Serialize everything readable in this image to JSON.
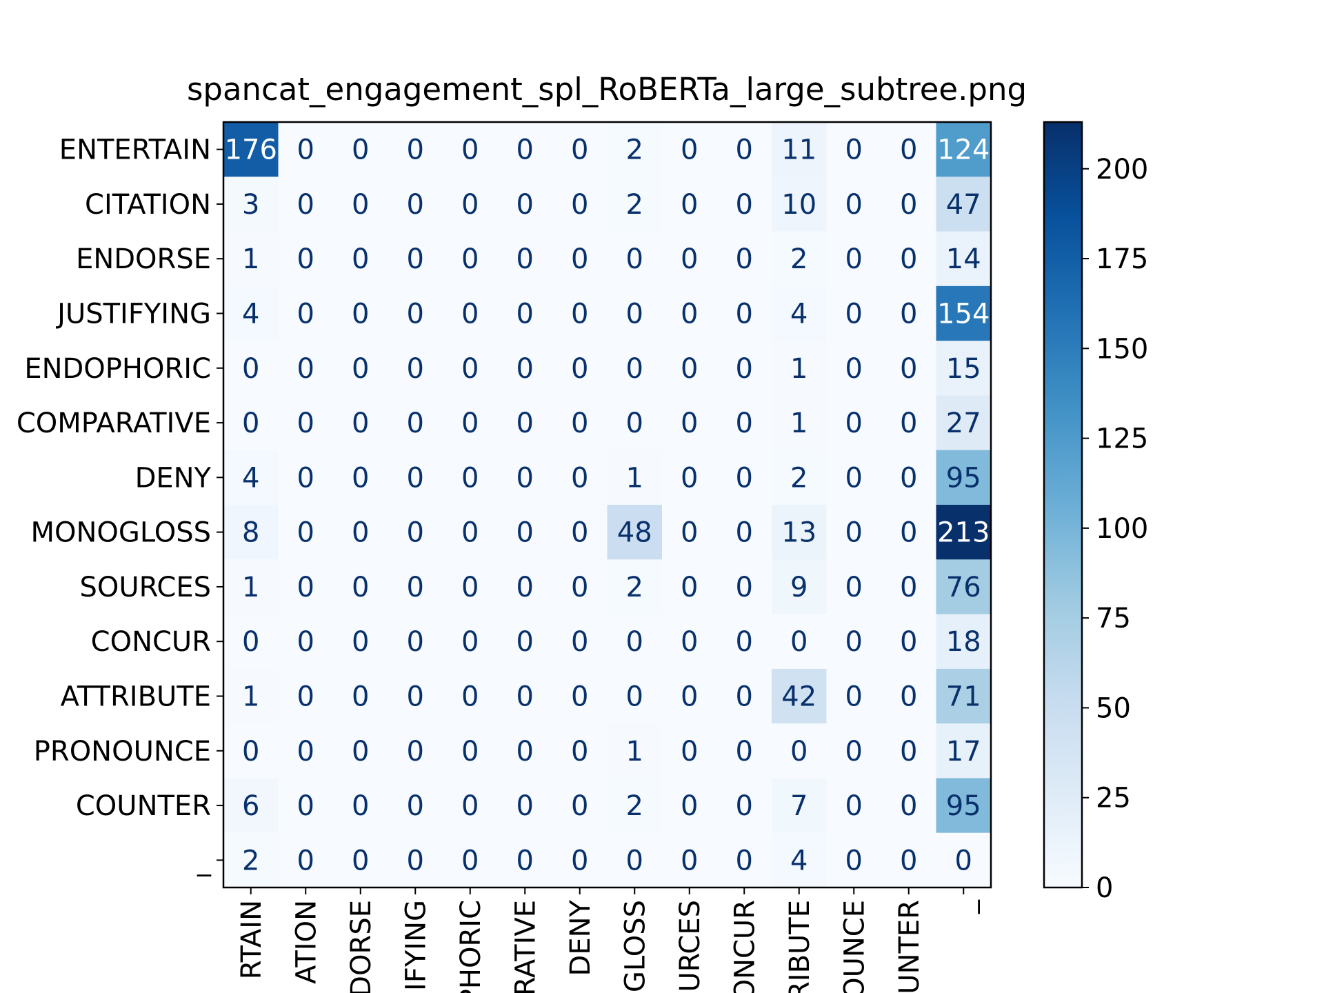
{
  "chart_data": {
    "type": "heatmap",
    "title": "spancat_engagement_spl_RoBERTa_large_subtree.png",
    "xlabel": "",
    "ylabel": "",
    "row_labels": [
      "ENTERTAIN",
      "CITATION",
      "ENDORSE",
      "JUSTIFYING",
      "ENDOPHORIC",
      "COMPARATIVE",
      "DENY",
      "MONOGLOSS",
      "SOURCES",
      "CONCUR",
      "ATTRIBUTE",
      "PRONOUNCE",
      "COUNTER",
      "_"
    ],
    "col_labels": [
      "ENTERTAIN",
      "CITATION",
      "ENDORSE",
      "JUSTIFYING",
      "ENDOPHORIC",
      "COMPARATIVE",
      "DENY",
      "MONOGLOSS",
      "SOURCES",
      "CONCUR",
      "ATTRIBUTE",
      "PRONOUNCE",
      "COUNTER",
      "_"
    ],
    "col_labels_visible": [
      "RTAIN",
      "ATION",
      "DORSE",
      "IFYING",
      "PHORIC",
      "RATIVE",
      "DENY",
      "GLOSS",
      "URCES",
      "ONCUR",
      "RIBUTE",
      "OUNCE",
      "UNTER",
      "_"
    ],
    "values": [
      [
        176,
        0,
        0,
        0,
        0,
        0,
        0,
        2,
        0,
        0,
        11,
        0,
        0,
        124
      ],
      [
        3,
        0,
        0,
        0,
        0,
        0,
        0,
        2,
        0,
        0,
        10,
        0,
        0,
        47
      ],
      [
        1,
        0,
        0,
        0,
        0,
        0,
        0,
        0,
        0,
        0,
        2,
        0,
        0,
        14
      ],
      [
        4,
        0,
        0,
        0,
        0,
        0,
        0,
        0,
        0,
        0,
        4,
        0,
        0,
        154
      ],
      [
        0,
        0,
        0,
        0,
        0,
        0,
        0,
        0,
        0,
        0,
        1,
        0,
        0,
        15
      ],
      [
        0,
        0,
        0,
        0,
        0,
        0,
        0,
        0,
        0,
        0,
        1,
        0,
        0,
        27
      ],
      [
        4,
        0,
        0,
        0,
        0,
        0,
        0,
        1,
        0,
        0,
        2,
        0,
        0,
        95
      ],
      [
        8,
        0,
        0,
        0,
        0,
        0,
        0,
        48,
        0,
        0,
        13,
        0,
        0,
        213
      ],
      [
        1,
        0,
        0,
        0,
        0,
        0,
        0,
        2,
        0,
        0,
        9,
        0,
        0,
        76
      ],
      [
        0,
        0,
        0,
        0,
        0,
        0,
        0,
        0,
        0,
        0,
        0,
        0,
        0,
        18
      ],
      [
        1,
        0,
        0,
        0,
        0,
        0,
        0,
        0,
        0,
        0,
        42,
        0,
        0,
        71
      ],
      [
        0,
        0,
        0,
        0,
        0,
        0,
        0,
        1,
        0,
        0,
        0,
        0,
        0,
        17
      ],
      [
        6,
        0,
        0,
        0,
        0,
        0,
        0,
        2,
        0,
        0,
        7,
        0,
        0,
        95
      ],
      [
        2,
        0,
        0,
        0,
        0,
        0,
        0,
        0,
        0,
        0,
        4,
        0,
        0,
        0
      ]
    ],
    "colormap": "Blues",
    "colorbar": {
      "min": 0,
      "max": 213,
      "ticks": [
        0,
        25,
        50,
        75,
        100,
        125,
        150,
        175,
        200
      ]
    },
    "grid": false
  }
}
